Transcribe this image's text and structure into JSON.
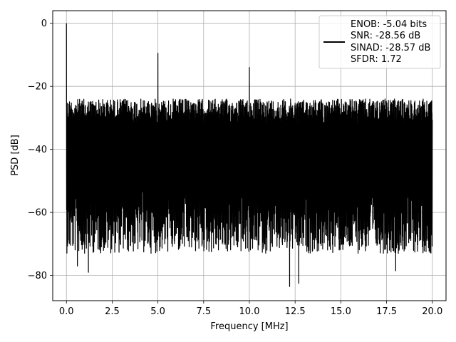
{
  "chart_data": {
    "type": "line",
    "title": "",
    "xlabel": "Frequency [MHz]",
    "ylabel": "PSD [dB]",
    "xlim": [
      -0.75,
      20.75
    ],
    "ylim": [
      -88,
      4
    ],
    "x_ticks": [
      0.0,
      2.5,
      5.0,
      7.5,
      10.0,
      12.5,
      15.0,
      17.5,
      20.0
    ],
    "x_tick_labels": [
      "0.0",
      "2.5",
      "5.0",
      "7.5",
      "10.0",
      "12.5",
      "15.0",
      "17.5",
      "20.0"
    ],
    "y_ticks": [
      0,
      -20,
      -40,
      -60,
      -80
    ],
    "y_tick_labels": [
      "0",
      "−20",
      "−40",
      "−60",
      "−80"
    ],
    "grid": true,
    "legend_position": "upper-right",
    "series": [
      {
        "name": "ENOB: -5.04 bits\nSNR: -28.56 dB\nSINAD: -28.57 dB\nSFDR: 1.72",
        "color": "#000000",
        "description_points": {
          "x_range": [
            0.0,
            20.0
          ],
          "noise_floor_upper_envelope_db": -22,
          "noise_floor_lower_typical_db": -65,
          "peaks": [
            {
              "x": 0.0,
              "y": 0.0
            },
            {
              "x": 5.0,
              "y": -9.5
            },
            {
              "x": 10.0,
              "y": -14
            }
          ],
          "deep_nulls": [
            {
              "x": 12.2,
              "y": -83.5
            },
            {
              "x": 12.7,
              "y": -82.5
            },
            {
              "x": 18.0,
              "y": -78.5
            },
            {
              "x": 1.2,
              "y": -79
            },
            {
              "x": 0.6,
              "y": -77
            }
          ]
        }
      }
    ],
    "legend_lines": [
      "ENOB: -5.04 bits",
      "SNR: -28.56 dB",
      "SINAD: -28.57 dB",
      "SFDR: 1.72"
    ]
  }
}
